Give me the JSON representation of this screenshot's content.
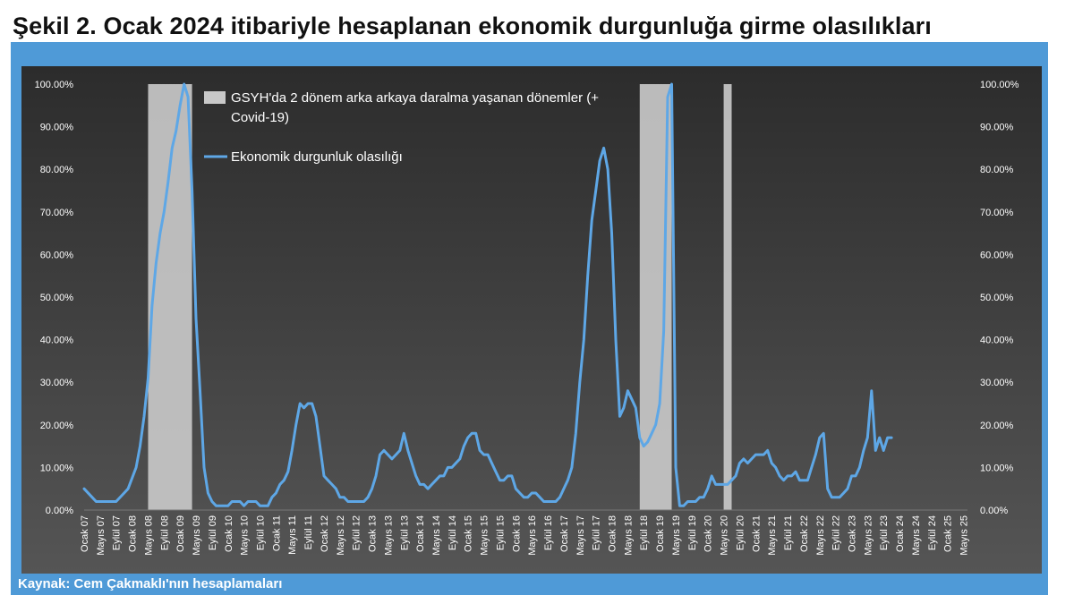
{
  "page": {
    "title": "Şekil 2. Ocak 2024 itibariyle hesaplanan ekonomik durgunluğa girme olasılıkları",
    "source": "Kaynak: Cem Çakmaklı'nın hesaplamaları"
  },
  "colors": {
    "frame": "#4f9ad7",
    "plot_bg_top": "#2c2c2c",
    "plot_bg_bottom": "#555555",
    "line": "#5ea7e6",
    "band": "#c8c8c8",
    "text": "#ffffff",
    "grid": "#777777"
  },
  "chart_data": {
    "type": "line",
    "title": "",
    "xlabel": "",
    "ylabel": "",
    "ylim": [
      0,
      100
    ],
    "y_ticks": [
      "0.00%",
      "10.00%",
      "20.00%",
      "30.00%",
      "40.00%",
      "50.00%",
      "60.00%",
      "70.00%",
      "80.00%",
      "90.00%",
      "100.00%"
    ],
    "right_axis": true,
    "legend_position": "top-left",
    "x_tick_labels": [
      {
        "m": 0,
        "label": "Ocak 07"
      },
      {
        "m": 4,
        "label": "Mayıs 07"
      },
      {
        "m": 8,
        "label": "Eylül 07"
      },
      {
        "m": 12,
        "label": "Ocak 08"
      },
      {
        "m": 16,
        "label": "Mayıs 08"
      },
      {
        "m": 20,
        "label": "Eylül 08"
      },
      {
        "m": 24,
        "label": "Ocak 09"
      },
      {
        "m": 28,
        "label": "Mayıs 09"
      },
      {
        "m": 32,
        "label": "Eylül 09"
      },
      {
        "m": 36,
        "label": "Ocak 10"
      },
      {
        "m": 40,
        "label": "Mayıs 10"
      },
      {
        "m": 44,
        "label": "Eylül 10"
      },
      {
        "m": 48,
        "label": "Ocak 11"
      },
      {
        "m": 52,
        "label": "Mayıs 11"
      },
      {
        "m": 56,
        "label": "Eylül 11"
      },
      {
        "m": 60,
        "label": "Ocak 12"
      },
      {
        "m": 64,
        "label": "Mayıs 12"
      },
      {
        "m": 68,
        "label": "Eylül 12"
      },
      {
        "m": 72,
        "label": "Ocak 13"
      },
      {
        "m": 76,
        "label": "Mayıs 13"
      },
      {
        "m": 80,
        "label": "Eylül 13"
      },
      {
        "m": 84,
        "label": "Ocak 14"
      },
      {
        "m": 88,
        "label": "Mayıs 14"
      },
      {
        "m": 92,
        "label": "Eylül 14"
      },
      {
        "m": 96,
        "label": "Ocak 15"
      },
      {
        "m": 100,
        "label": "Mayıs 15"
      },
      {
        "m": 104,
        "label": "Eylül 15"
      },
      {
        "m": 108,
        "label": "Ocak 16"
      },
      {
        "m": 112,
        "label": "Mayıs 16"
      },
      {
        "m": 116,
        "label": "Eylül 16"
      },
      {
        "m": 120,
        "label": "Ocak 17"
      },
      {
        "m": 124,
        "label": "Mayıs 17"
      },
      {
        "m": 128,
        "label": "Eylül 17"
      },
      {
        "m": 132,
        "label": "Ocak 18"
      },
      {
        "m": 136,
        "label": "Mayıs 18"
      },
      {
        "m": 140,
        "label": "Eylül 18"
      },
      {
        "m": 144,
        "label": "Ocak 19"
      },
      {
        "m": 148,
        "label": "Mayıs 19"
      },
      {
        "m": 152,
        "label": "Eylül 19"
      },
      {
        "m": 156,
        "label": "Ocak 20"
      },
      {
        "m": 160,
        "label": "Mayıs 20"
      },
      {
        "m": 164,
        "label": "Eylül 20"
      },
      {
        "m": 168,
        "label": "Ocak 21"
      },
      {
        "m": 172,
        "label": "Mayıs 21"
      },
      {
        "m": 176,
        "label": "Eylül 21"
      },
      {
        "m": 180,
        "label": "Ocak 22"
      },
      {
        "m": 184,
        "label": "Mayıs 22"
      },
      {
        "m": 188,
        "label": "Eylül 22"
      },
      {
        "m": 192,
        "label": "Ocak 23"
      },
      {
        "m": 196,
        "label": "Mayıs 23"
      },
      {
        "m": 200,
        "label": "Eylül 23"
      },
      {
        "m": 204,
        "label": "Ocak 24"
      },
      {
        "m": 208,
        "label": "Mayıs 24"
      },
      {
        "m": 212,
        "label": "Eylül 24"
      },
      {
        "m": 216,
        "label": "Ocak 25"
      },
      {
        "m": 220,
        "label": "Mayıs 25"
      }
    ],
    "bands": {
      "name": "GSYH'da 2 dönem arka arkaya daralma yaşanan dönemler (+ Covid-19)",
      "ranges": [
        [
          16,
          27
        ],
        [
          139,
          147
        ],
        [
          160,
          162
        ]
      ]
    },
    "series": [
      {
        "name": "Ekonomik durgunluk olasılığı",
        "points": [
          [
            0,
            5
          ],
          [
            2,
            3
          ],
          [
            3,
            2
          ],
          [
            5,
            2
          ],
          [
            7,
            2
          ],
          [
            8,
            2
          ],
          [
            10,
            4
          ],
          [
            11,
            5
          ],
          [
            13,
            10
          ],
          [
            14,
            15
          ],
          [
            15,
            22
          ],
          [
            16,
            31
          ],
          [
            17,
            48
          ],
          [
            18,
            58
          ],
          [
            19,
            65
          ],
          [
            20,
            70
          ],
          [
            21,
            77
          ],
          [
            22,
            85
          ],
          [
            23,
            89
          ],
          [
            24,
            95
          ],
          [
            25,
            100
          ],
          [
            26,
            97
          ],
          [
            27,
            75
          ],
          [
            28,
            45
          ],
          [
            29,
            28
          ],
          [
            30,
            10
          ],
          [
            31,
            4
          ],
          [
            32,
            2
          ],
          [
            33,
            1
          ],
          [
            36,
            1
          ],
          [
            37,
            2
          ],
          [
            39,
            2
          ],
          [
            40,
            1
          ],
          [
            41,
            2
          ],
          [
            43,
            2
          ],
          [
            44,
            1
          ],
          [
            46,
            1
          ],
          [
            47,
            3
          ],
          [
            48,
            4
          ],
          [
            49,
            6
          ],
          [
            50,
            7
          ],
          [
            51,
            9
          ],
          [
            52,
            14
          ],
          [
            53,
            20
          ],
          [
            54,
            25
          ],
          [
            55,
            24
          ],
          [
            56,
            25
          ],
          [
            57,
            25
          ],
          [
            58,
            22
          ],
          [
            59,
            15
          ],
          [
            60,
            8
          ],
          [
            61,
            7
          ],
          [
            62,
            6
          ],
          [
            63,
            5
          ],
          [
            64,
            3
          ],
          [
            65,
            3
          ],
          [
            66,
            2
          ],
          [
            68,
            2
          ],
          [
            70,
            2
          ],
          [
            71,
            3
          ],
          [
            72,
            5
          ],
          [
            73,
            8
          ],
          [
            74,
            13
          ],
          [
            75,
            14
          ],
          [
            76,
            13
          ],
          [
            77,
            12
          ],
          [
            78,
            13
          ],
          [
            79,
            14
          ],
          [
            80,
            18
          ],
          [
            81,
            14
          ],
          [
            82,
            11
          ],
          [
            83,
            8
          ],
          [
            84,
            6
          ],
          [
            85,
            6
          ],
          [
            86,
            5
          ],
          [
            87,
            6
          ],
          [
            88,
            7
          ],
          [
            89,
            8
          ],
          [
            90,
            8
          ],
          [
            91,
            10
          ],
          [
            92,
            10
          ],
          [
            93,
            11
          ],
          [
            94,
            12
          ],
          [
            95,
            15
          ],
          [
            96,
            17
          ],
          [
            97,
            18
          ],
          [
            98,
            18
          ],
          [
            99,
            14
          ],
          [
            100,
            13
          ],
          [
            101,
            13
          ],
          [
            102,
            11
          ],
          [
            103,
            9
          ],
          [
            104,
            7
          ],
          [
            105,
            7
          ],
          [
            106,
            8
          ],
          [
            107,
            8
          ],
          [
            108,
            5
          ],
          [
            109,
            4
          ],
          [
            110,
            3
          ],
          [
            111,
            3
          ],
          [
            112,
            4
          ],
          [
            113,
            4
          ],
          [
            114,
            3
          ],
          [
            115,
            2
          ],
          [
            118,
            2
          ],
          [
            119,
            3
          ],
          [
            120,
            5
          ],
          [
            121,
            7
          ],
          [
            122,
            10
          ],
          [
            123,
            18
          ],
          [
            124,
            30
          ],
          [
            125,
            40
          ],
          [
            126,
            55
          ],
          [
            127,
            68
          ],
          [
            128,
            75
          ],
          [
            129,
            82
          ],
          [
            130,
            85
          ],
          [
            131,
            80
          ],
          [
            132,
            65
          ],
          [
            133,
            40
          ],
          [
            134,
            22
          ],
          [
            135,
            24
          ],
          [
            136,
            28
          ],
          [
            137,
            26
          ],
          [
            138,
            24
          ],
          [
            139,
            17
          ],
          [
            140,
            15
          ],
          [
            141,
            16
          ],
          [
            142,
            18
          ],
          [
            143,
            20
          ],
          [
            144,
            25
          ],
          [
            145,
            42
          ],
          [
            146,
            97
          ],
          [
            147,
            100
          ],
          [
            148,
            10
          ],
          [
            149,
            1
          ],
          [
            150,
            1
          ],
          [
            151,
            2
          ],
          [
            153,
            2
          ],
          [
            154,
            3
          ],
          [
            155,
            3
          ],
          [
            156,
            5
          ],
          [
            157,
            8
          ],
          [
            158,
            6
          ],
          [
            159,
            6
          ],
          [
            161,
            6
          ],
          [
            162,
            7
          ],
          [
            163,
            8
          ],
          [
            164,
            11
          ],
          [
            165,
            12
          ],
          [
            166,
            11
          ],
          [
            167,
            12
          ],
          [
            168,
            13
          ],
          [
            170,
            13
          ],
          [
            171,
            14
          ],
          [
            172,
            11
          ],
          [
            173,
            10
          ],
          [
            174,
            8
          ],
          [
            175,
            7
          ],
          [
            176,
            8
          ],
          [
            177,
            8
          ],
          [
            178,
            9
          ],
          [
            179,
            7
          ],
          [
            180,
            7
          ],
          [
            181,
            7
          ],
          [
            182,
            10
          ],
          [
            183,
            13
          ],
          [
            184,
            17
          ],
          [
            185,
            18
          ],
          [
            186,
            5
          ],
          [
            187,
            3
          ],
          [
            188,
            3
          ],
          [
            189,
            3
          ],
          [
            190,
            4
          ],
          [
            191,
            5
          ],
          [
            192,
            8
          ],
          [
            193,
            8
          ],
          [
            194,
            10
          ],
          [
            195,
            14
          ],
          [
            196,
            17
          ],
          [
            197,
            28
          ],
          [
            198,
            14
          ],
          [
            199,
            17
          ],
          [
            200,
            14
          ],
          [
            201,
            17
          ],
          [
            202,
            17
          ]
        ]
      }
    ]
  }
}
